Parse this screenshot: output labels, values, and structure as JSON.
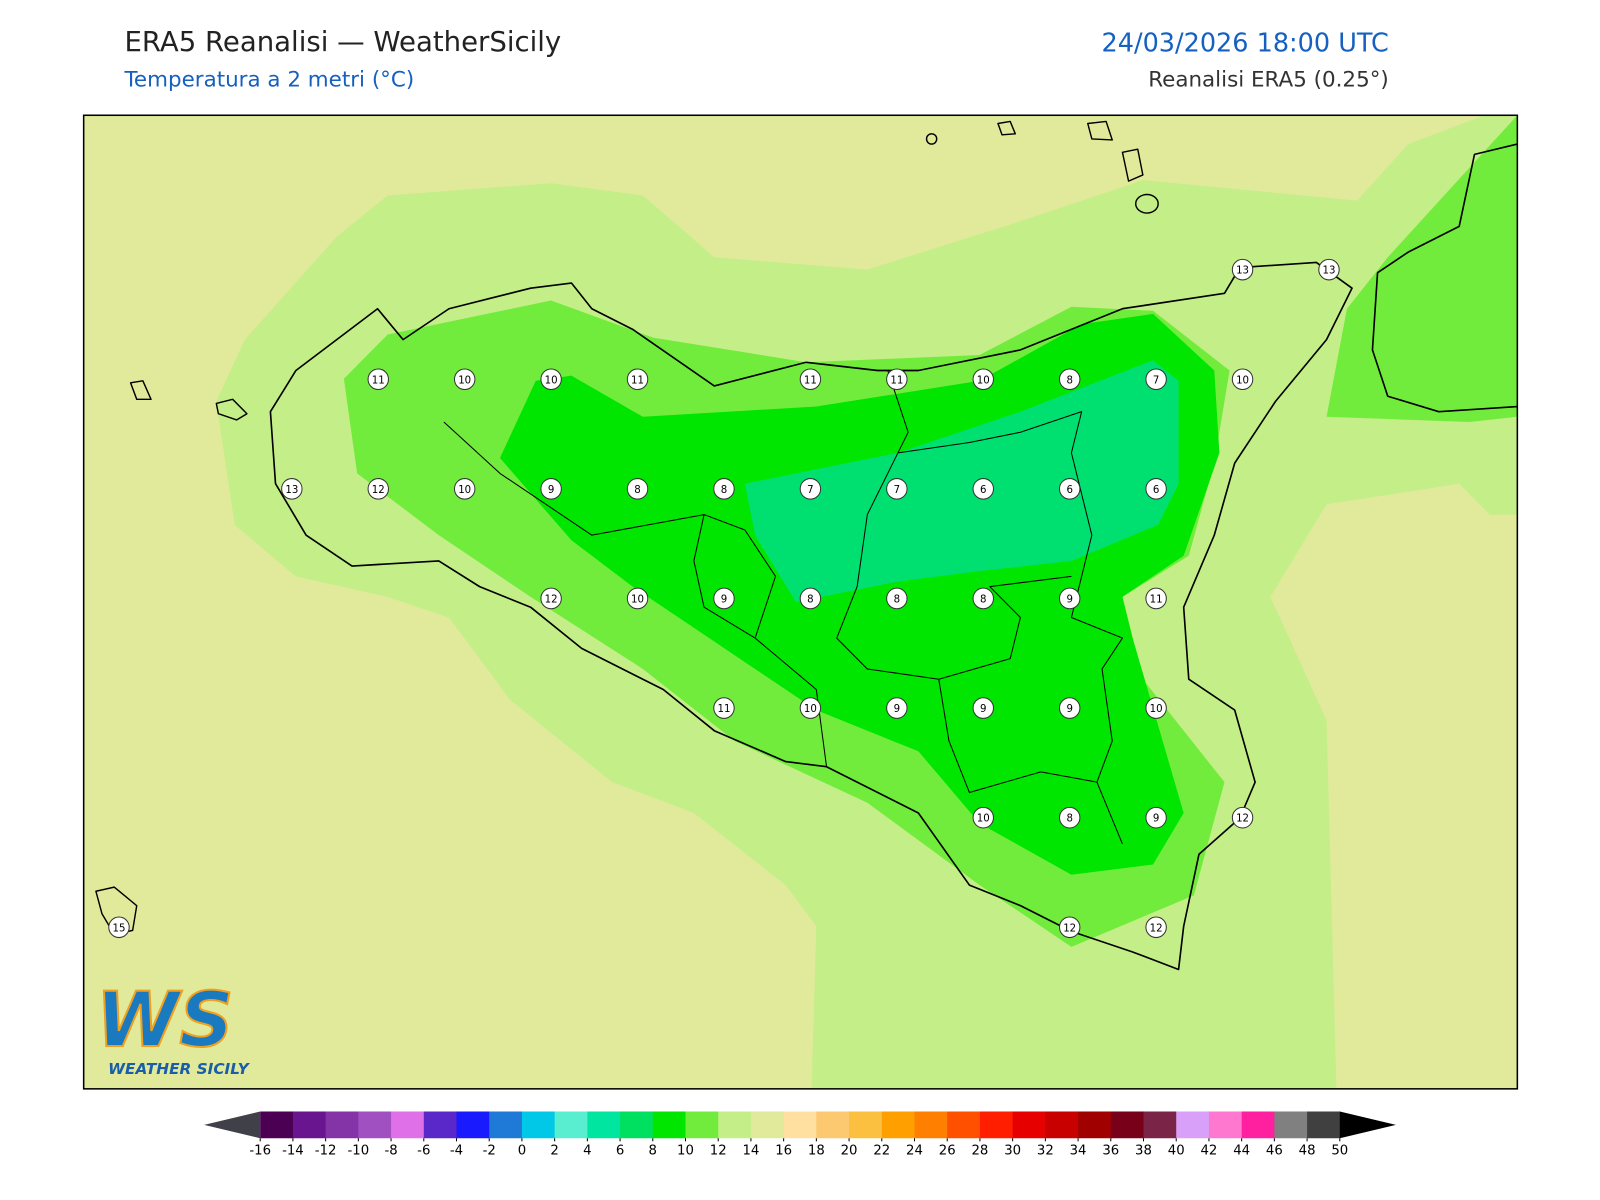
{
  "header": {
    "title": "ERA5 Reanalisi — WeatherSicily",
    "subtitle": "Temperatura a 2 metri (°C)",
    "date": "24/03/2026 18:00 UTC",
    "source": "Reanalisi ERA5 (0.25°)"
  },
  "stations": [
    13,
    13,
    11,
    10,
    10,
    11,
    11,
    11,
    10,
    8,
    7,
    10,
    13,
    12,
    10,
    9,
    8,
    8,
    7,
    7,
    6,
    6,
    6,
    12,
    10,
    9,
    8,
    8,
    8,
    9,
    11,
    11,
    10,
    9,
    9,
    9,
    10,
    10,
    8,
    9,
    12,
    12,
    12,
    15
  ],
  "colorbar": {
    "ticks": [
      -16,
      -14,
      -12,
      -10,
      -8,
      -6,
      -4,
      -2,
      0,
      2,
      4,
      6,
      8,
      10,
      12,
      14,
      16,
      18,
      20,
      22,
      24,
      26,
      28,
      30,
      32,
      34,
      36,
      38,
      40,
      42,
      44,
      46,
      48,
      50
    ],
    "colors": [
      "#4b0054",
      "#6a1590",
      "#8534a8",
      "#a050c0",
      "#e070e8",
      "#5a28c8",
      "#1a1aff",
      "#1e7ad6",
      "#00c8e6",
      "#5aeed0",
      "#00e6a0",
      "#00e060",
      "#00e600",
      "#72ec3c",
      "#c4ee88",
      "#e0ea9a",
      "#ffe0a0",
      "#fcc870",
      "#fcc040",
      "#ffa000",
      "#ff8000",
      "#ff5000",
      "#ff1e00",
      "#e60000",
      "#c80000",
      "#a00000",
      "#780018",
      "#7a2448",
      "#d8a0f8",
      "#ff78d0",
      "#ff20a0",
      "#808080",
      "#404040"
    ],
    "under_color": "#404048",
    "over_color": "#000000"
  },
  "logo": {
    "mark": "WS",
    "name": "WEATHER SICILY"
  }
}
